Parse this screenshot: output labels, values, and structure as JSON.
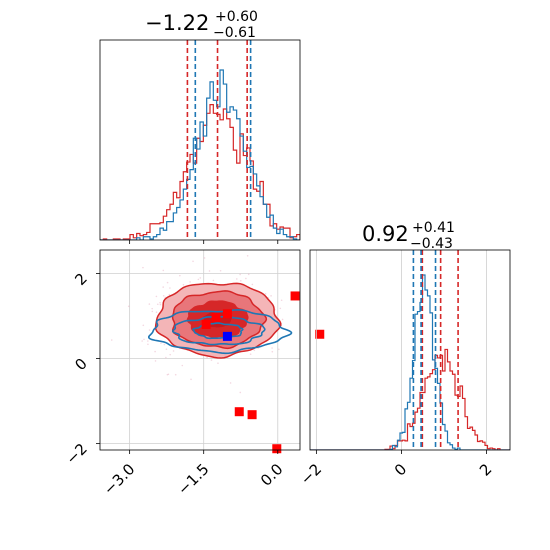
{
  "colors": {
    "red": "#d62728",
    "red_light": "#f4b5b7",
    "red_mid": "#e8767a",
    "blue": "#1f77b4",
    "grid": "#cfcfcf",
    "marker_red": "#ff0000",
    "marker_blue": "#0000ff"
  },
  "chart_data": [
    {
      "type": "histogram",
      "panel": "top-left",
      "title": {
        "value": "−1.22",
        "plus": "+0.60",
        "minus": "−0.61"
      },
      "xlim": [
        -3.6,
        0.45
      ],
      "grid": false,
      "series": [
        {
          "name": "",
          "color": "#d62728",
          "quantiles": [
            -1.83,
            -1.22,
            -0.62
          ]
        },
        {
          "name": "",
          "color": "#1f77b4",
          "quantiles": [
            -1.67,
            -0.55
          ]
        }
      ]
    },
    {
      "type": "scatter",
      "panel": "bottom-left",
      "xlim": [
        -3.6,
        0.45
      ],
      "ylim": [
        -2.15,
        2.55
      ],
      "x_ticks": [
        "−3.0",
        "−1.5",
        "0.0"
      ],
      "x_tick_values": [
        -3.0,
        -1.5,
        0.0
      ],
      "y_ticks": [
        "−2",
        "0",
        "2"
      ],
      "y_tick_values": [
        -2,
        0,
        2
      ],
      "grid": true,
      "contours": {
        "red": {
          "center": [
            -1.22,
            0.92
          ],
          "sigma": [
            0.6,
            0.42
          ]
        },
        "blue": {
          "center": [
            -1.2,
            0.65
          ],
          "sigma": [
            0.65,
            0.22
          ]
        }
      },
      "markers_red": [
        {
          "x": 0.35,
          "y": 1.47
        },
        {
          "x": 0.85,
          "y": 0.57
        },
        {
          "x": -1.25,
          "y": 0.97
        },
        {
          "x": -1.02,
          "y": 1.05
        },
        {
          "x": -1.45,
          "y": 0.8
        },
        {
          "x": -0.78,
          "y": -1.25
        },
        {
          "x": -0.52,
          "y": -1.32
        },
        {
          "x": -0.02,
          "y": -2.12
        }
      ],
      "markers_blue": [
        {
          "x": -1.02,
          "y": 0.52
        }
      ]
    },
    {
      "type": "histogram",
      "panel": "bottom-right",
      "title": {
        "value": "0.92",
        "plus": "+0.41",
        "minus": "−0.43"
      },
      "xlim": [
        -2.15,
        2.55
      ],
      "x_ticks": [
        "−2",
        "0",
        "2"
      ],
      "x_tick_values": [
        -2,
        0,
        2
      ],
      "grid": true,
      "series": [
        {
          "name": "",
          "color": "#d62728",
          "quantiles": [
            0.49,
            0.92,
            1.33
          ]
        },
        {
          "name": "",
          "color": "#1f77b4",
          "quantiles": [
            0.28,
            0.46,
            0.8
          ]
        }
      ]
    }
  ]
}
